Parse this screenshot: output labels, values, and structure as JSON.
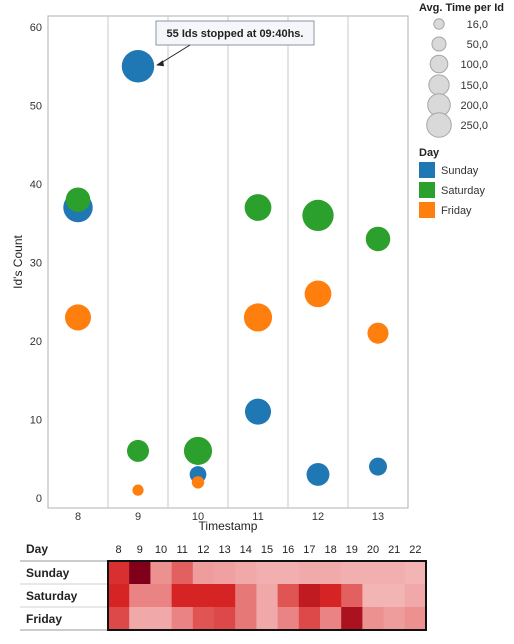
{
  "chart_data": [
    {
      "type": "scatter",
      "xlabel": "Timestamp",
      "ylabel": "Id's Count",
      "x_ticks": [
        8,
        9,
        10,
        11,
        12,
        13
      ],
      "y_ticks": [
        0,
        10,
        20,
        30,
        40,
        50,
        60
      ],
      "ylim": [
        0,
        60
      ],
      "annotation": {
        "text": "55 Ids stopped at 09:40hs.",
        "target": {
          "series": "Sunday",
          "x": 9,
          "y": 55
        }
      },
      "size_legend": {
        "title": "Avg. Time per Id",
        "values": [
          16,
          50,
          100,
          150,
          200,
          250
        ],
        "labels": [
          "16,0",
          "50,0",
          "100,0",
          "150,0",
          "200,0",
          "250,0"
        ]
      },
      "color_legend": {
        "title": "Day",
        "position": "right"
      },
      "series": [
        {
          "name": "Sunday",
          "color": "#1f77b4",
          "points": [
            {
              "x": 8,
              "y": 37,
              "size": 200
            },
            {
              "x": 9,
              "y": 55,
              "size": 250
            },
            {
              "x": 10,
              "y": 3,
              "size": 50
            },
            {
              "x": 11,
              "y": 11,
              "size": 150
            },
            {
              "x": 12,
              "y": 3,
              "size": 110
            },
            {
              "x": 13,
              "y": 4,
              "size": 60
            }
          ]
        },
        {
          "name": "Saturday",
          "color": "#2ca02c",
          "points": [
            {
              "x": 8,
              "y": 38,
              "size": 130
            },
            {
              "x": 9,
              "y": 6,
              "size": 100
            },
            {
              "x": 10,
              "y": 6,
              "size": 180
            },
            {
              "x": 11,
              "y": 37,
              "size": 160
            },
            {
              "x": 12,
              "y": 36,
              "size": 230
            },
            {
              "x": 13,
              "y": 33,
              "size": 130
            }
          ]
        },
        {
          "name": "Friday",
          "color": "#ff7f0e",
          "points": [
            {
              "x": 8,
              "y": 23,
              "size": 150
            },
            {
              "x": 9,
              "y": 1,
              "size": 16
            },
            {
              "x": 10,
              "y": 2,
              "size": 22
            },
            {
              "x": 11,
              "y": 23,
              "size": 180
            },
            {
              "x": 12,
              "y": 26,
              "size": 160
            },
            {
              "x": 13,
              "y": 21,
              "size": 90
            }
          ]
        }
      ]
    },
    {
      "type": "heatmap",
      "row_header": "Day",
      "columns": [
        8,
        9,
        10,
        11,
        12,
        13,
        14,
        15,
        16,
        17,
        18,
        19,
        20,
        21,
        22
      ],
      "rows": [
        "Sunday",
        "Saturday",
        "Friday"
      ],
      "values": [
        [
          0.75,
          1.0,
          0.35,
          0.55,
          0.3,
          0.28,
          0.25,
          0.22,
          0.22,
          0.24,
          0.24,
          0.22,
          0.22,
          0.22,
          0.2
        ],
        [
          0.8,
          0.4,
          0.4,
          0.8,
          0.8,
          0.8,
          0.45,
          0.25,
          0.6,
          0.85,
          0.8,
          0.55,
          0.2,
          0.2,
          0.25
        ],
        [
          0.65,
          0.25,
          0.25,
          0.4,
          0.6,
          0.65,
          0.45,
          0.25,
          0.4,
          0.65,
          0.4,
          0.9,
          0.35,
          0.3,
          0.35
        ]
      ]
    }
  ]
}
